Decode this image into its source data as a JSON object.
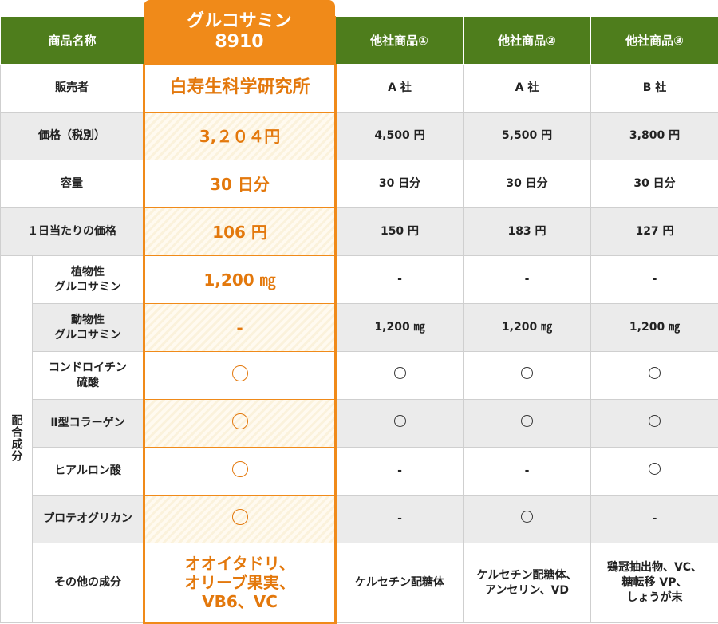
{
  "featured": {
    "name_line1": "グルコサミン",
    "name_line2": "8910"
  },
  "header": {
    "label": "商品名称",
    "competitors": [
      "他社商品①",
      "他社商品②",
      "他社商品③"
    ]
  },
  "category_label": "配合成分",
  "rows": [
    {
      "label": "販売者",
      "featured": "白寿生科学研究所",
      "others": [
        "A 社",
        "A 社",
        "B 社"
      ]
    },
    {
      "label": "価格（税別）",
      "featured": "3,２０４円",
      "others": [
        "4,500 円",
        "5,500 円",
        "3,800 円"
      ]
    },
    {
      "label": "容量",
      "featured": "30 日分",
      "others": [
        "30 日分",
        "30 日分",
        "30 日分"
      ]
    },
    {
      "label": "１日当たりの価格",
      "featured": "106 円",
      "others": [
        "150 円",
        "183 円",
        "127 円"
      ]
    },
    {
      "label": "植物性\nグルコサミン",
      "featured": "1,200 ㎎",
      "others": [
        "-",
        "-",
        "-"
      ]
    },
    {
      "label": "動物性\nグルコサミン",
      "featured": "-",
      "others": [
        "1,200 ㎎",
        "1,200 ㎎",
        "1,200 ㎎"
      ]
    },
    {
      "label": "コンドロイチン\n硫酸",
      "featured": "〇",
      "others": [
        "〇",
        "〇",
        "〇"
      ]
    },
    {
      "label": "Ⅱ型コラーゲン",
      "featured": "〇",
      "others": [
        "〇",
        "〇",
        "〇"
      ]
    },
    {
      "label": "ヒアルロン酸",
      "featured": "〇",
      "others": [
        "-",
        "-",
        "〇"
      ]
    },
    {
      "label": "プロテオグリカン",
      "featured": "〇",
      "others": [
        "-",
        "〇",
        "-"
      ]
    },
    {
      "label": "その他の成分",
      "featured": "オオイタドリ、\nオリーブ果実、\nVB6、VC",
      "others": [
        "ケルセチン配糖体",
        "ケルセチン配糖体、\nアンセリン、VD",
        "鶏冠抽出物、VC、\n糖転移 VP、\nしょうが末"
      ]
    }
  ],
  "colors": {
    "header_green": "#4e7d1c",
    "featured_orange": "#f08a19",
    "featured_text": "#e3780c",
    "row_gray": "#ebebeb"
  }
}
